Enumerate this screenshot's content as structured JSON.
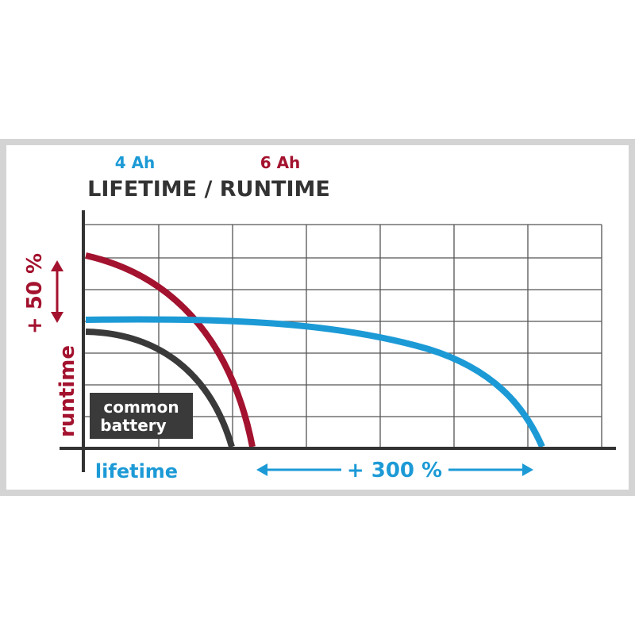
{
  "legend": {
    "small": "4 Ah",
    "large": "6 Ah"
  },
  "title": "LIFETIME / RUNTIME",
  "y_axis": {
    "gain": "+ 50 %",
    "label": "runtime"
  },
  "x_axis": {
    "label": "lifetime",
    "gain": "+ 300 %"
  },
  "common_label": [
    "common",
    "battery"
  ]
}
